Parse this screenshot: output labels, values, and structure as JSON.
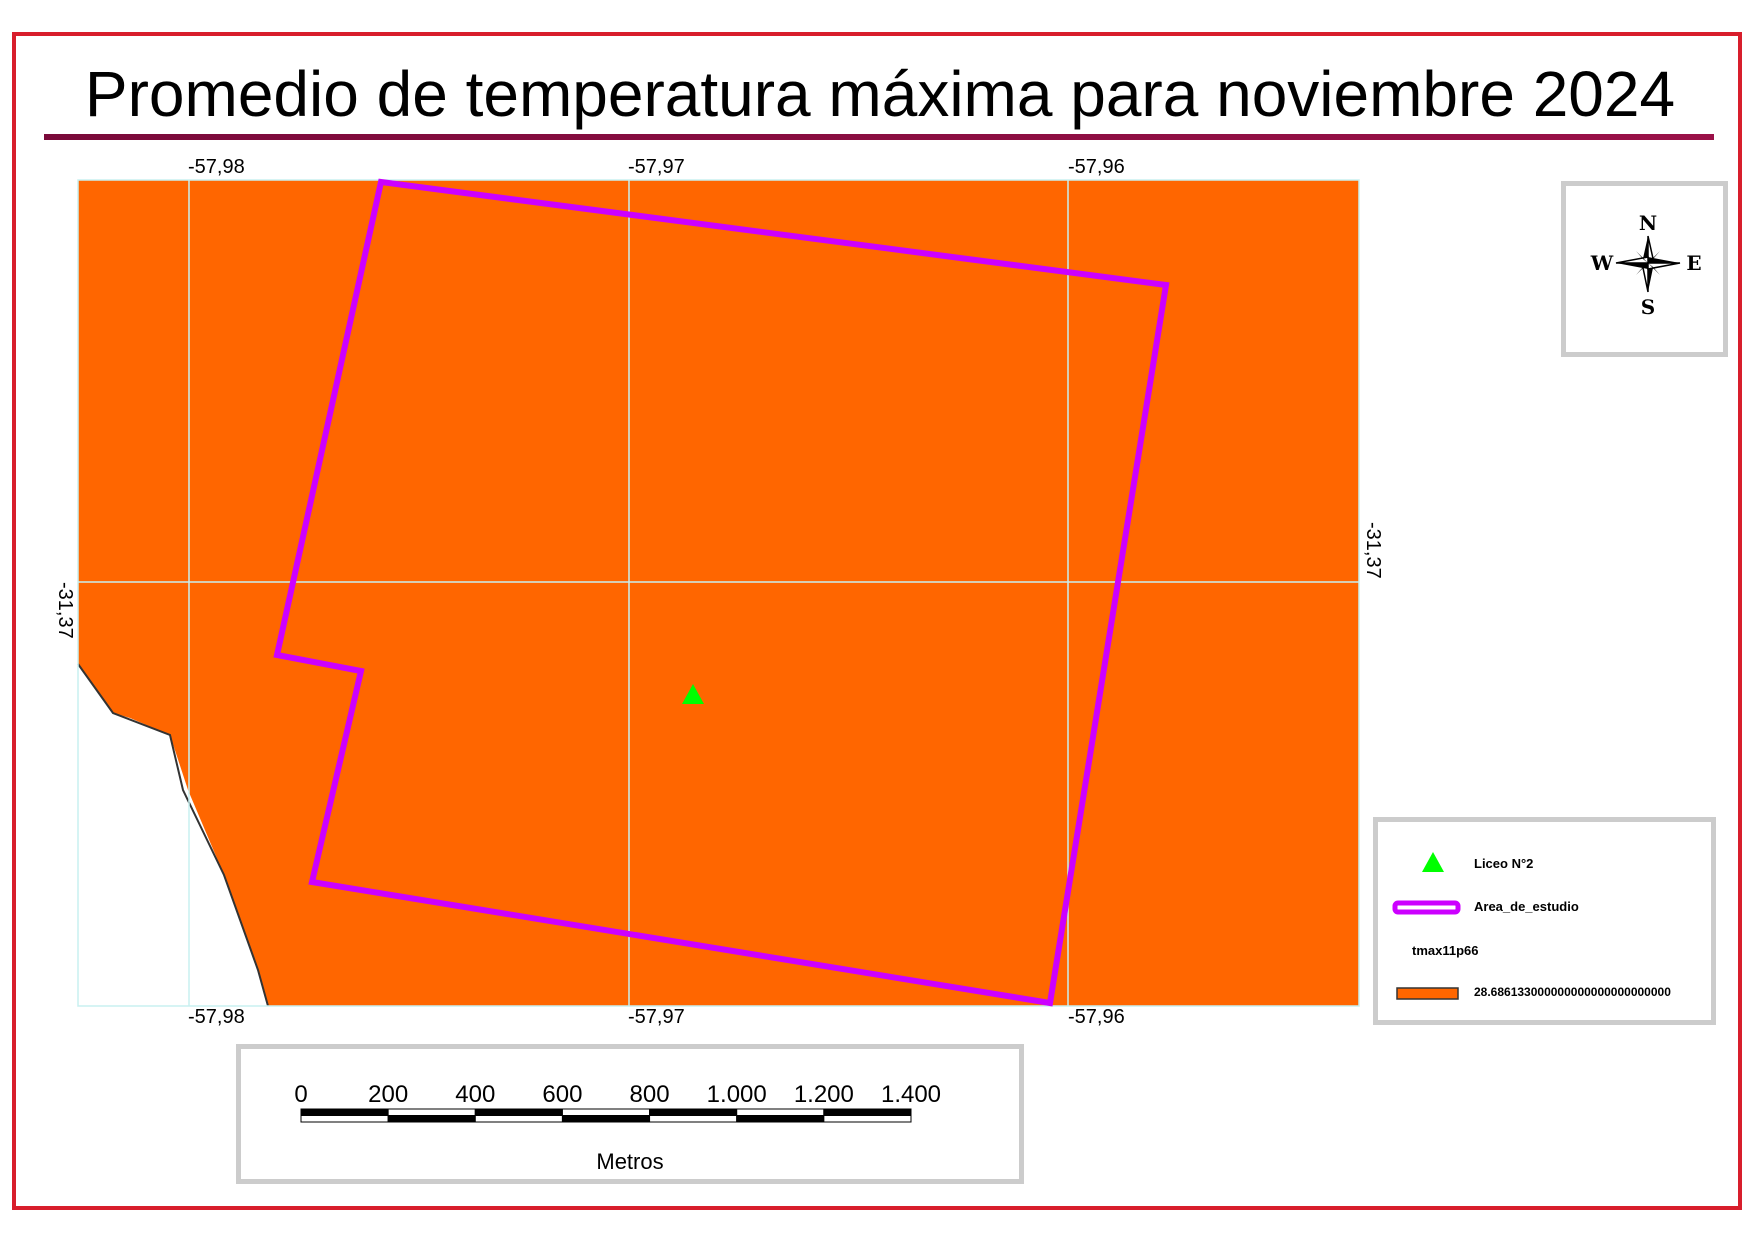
{
  "title": "Promedio de temperatura máxima para noviembre 2024",
  "coords": {
    "top": [
      "-57,98",
      "-57,97",
      "-57,96"
    ],
    "bottom": [
      "-57,98",
      "-57,97",
      "-57,96"
    ],
    "left": "-31,37",
    "right": "-31,37"
  },
  "colors": {
    "raster": "#ff6600",
    "study_area": "#cc00ff",
    "point": "#00ff00",
    "grid": "#c8f0f0",
    "frame": "#d81e2c",
    "title_rule": "#8a0d42"
  },
  "north_arrow": {
    "n": "N",
    "s": "S",
    "e": "E",
    "w": "W"
  },
  "legend": {
    "items": [
      {
        "label": "Liceo N°2",
        "symbol": "green-triangle"
      },
      {
        "label": "Area_de_estudio",
        "symbol": "magenta-outline"
      },
      {
        "label": "tmax11p66",
        "symbol": "none"
      },
      {
        "label": "28.686133000000000000000000000",
        "symbol": "orange-fill"
      }
    ]
  },
  "scale_bar": {
    "ticks": [
      "0",
      "200",
      "400",
      "600",
      "800",
      "1.000",
      "1.200",
      "1.400"
    ],
    "unit": "Metros"
  }
}
